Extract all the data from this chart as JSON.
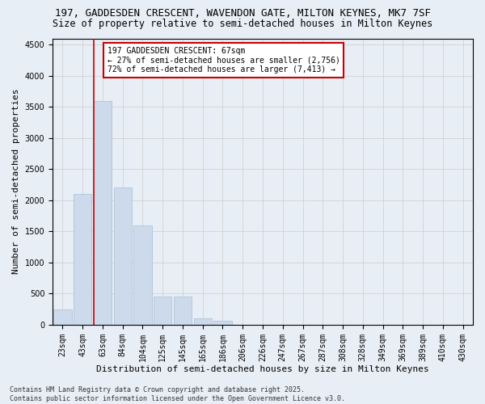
{
  "title_line1": "197, GADDESDEN CRESCENT, WAVENDON GATE, MILTON KEYNES, MK7 7SF",
  "title_line2": "Size of property relative to semi-detached houses in Milton Keynes",
  "xlabel": "Distribution of semi-detached houses by size in Milton Keynes",
  "ylabel": "Number of semi-detached properties",
  "annotation_title": "197 GADDESDEN CRESCENT: 67sqm",
  "annotation_line1": "← 27% of semi-detached houses are smaller (2,756)",
  "annotation_line2": "72% of semi-detached houses are larger (7,413) →",
  "footer_line1": "Contains HM Land Registry data © Crown copyright and database right 2025.",
  "footer_line2": "Contains public sector information licensed under the Open Government Licence v3.0.",
  "categories": [
    "23sqm",
    "43sqm",
    "63sqm",
    "84sqm",
    "104sqm",
    "125sqm",
    "145sqm",
    "165sqm",
    "186sqm",
    "206sqm",
    "226sqm",
    "247sqm",
    "267sqm",
    "287sqm",
    "308sqm",
    "328sqm",
    "349sqm",
    "369sqm",
    "389sqm",
    "410sqm",
    "430sqm"
  ],
  "values": [
    250,
    2100,
    3600,
    2200,
    1600,
    450,
    450,
    100,
    60,
    0,
    0,
    0,
    0,
    0,
    0,
    0,
    0,
    0,
    0,
    0,
    0
  ],
  "bar_color": "#ccdaeb",
  "bar_edge_color": "#a8bfd4",
  "grid_color": "#cccccc",
  "bg_color": "#e8eef5",
  "annotation_box_color": "#ffffff",
  "annotation_box_edge": "#cc0000",
  "vline_color": "#cc0000",
  "vline_x_index": 2,
  "ylim": [
    0,
    4600
  ],
  "yticks": [
    0,
    500,
    1000,
    1500,
    2000,
    2500,
    3000,
    3500,
    4000,
    4500
  ],
  "title_fontsize": 9,
  "subtitle_fontsize": 8.5,
  "axis_label_fontsize": 8,
  "tick_fontsize": 7,
  "annotation_fontsize": 7,
  "footer_fontsize": 6
}
